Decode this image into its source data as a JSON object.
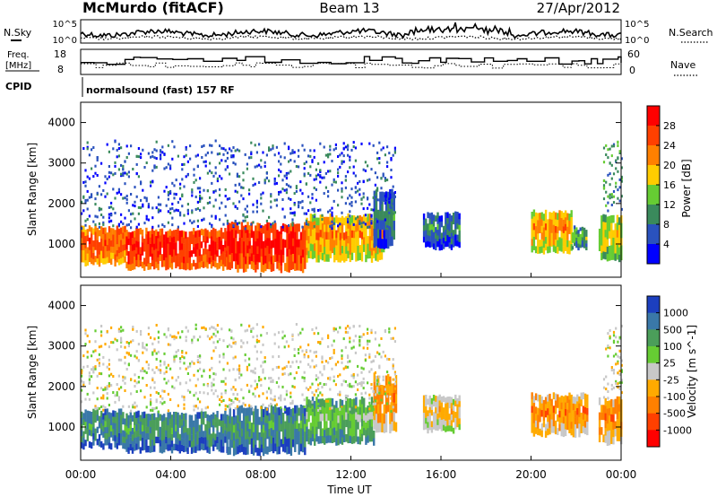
{
  "header": {
    "station": "McMurdo (fitACF)",
    "beam": "Beam 13",
    "date": "27/Apr/2012"
  },
  "noise_panel": {
    "left_label": "N.Sky",
    "right_label": "N.Search",
    "yticks_left": [
      "10^5",
      "10^0"
    ],
    "yticks_right": [
      "10^5",
      "10^0"
    ]
  },
  "freq_panel": {
    "left_label_1": "Freq.",
    "left_label_2": "[MHz]",
    "right_label": "Nave",
    "yticks_left": [
      "18",
      "8"
    ],
    "yticks_right": [
      "60",
      "0"
    ]
  },
  "cpid": {
    "label": "CPID",
    "text": "normalsound (fast) 157 RF"
  },
  "x_axis": {
    "label": "Time UT",
    "ticks": [
      "00:00",
      "04:00",
      "08:00",
      "12:00",
      "16:00",
      "20:00",
      "00:00"
    ]
  },
  "chart_data": [
    {
      "type": "heatmap",
      "quantity": "Power",
      "ylabel": "Slant Range [km]",
      "colorbar_label": "Power [dB]",
      "x_range_hours": [
        0,
        24
      ],
      "ylim": [
        180,
        4500
      ],
      "yticks": [
        1000,
        2000,
        3000,
        4000
      ],
      "colorbar_ticks": [
        "4",
        "8",
        "12",
        "16",
        "20",
        "24",
        "28"
      ],
      "colorbar_colors": [
        "#0000ff",
        "#2a52be",
        "#3a8a5c",
        "#66cc33",
        "#ffcc00",
        "#ff8000",
        "#ff4000",
        "#ff0000"
      ],
      "regions": [
        {
          "t0": 0.0,
          "t1": 2.0,
          "r0": 500,
          "r1": 1400,
          "level": 6
        },
        {
          "t0": 2.0,
          "t1": 6.5,
          "r0": 400,
          "r1": 1350,
          "level": 7
        },
        {
          "t0": 6.5,
          "t1": 10.0,
          "r0": 350,
          "r1": 1500,
          "level": 7
        },
        {
          "t0": 10.0,
          "t1": 13.5,
          "r0": 600,
          "r1": 1700,
          "level": 5
        },
        {
          "t0": 13.0,
          "t1": 13.9,
          "r0": 900,
          "r1": 2300,
          "level": 2
        },
        {
          "t0": 15.2,
          "t1": 16.8,
          "r0": 900,
          "r1": 1750,
          "level": 2
        },
        {
          "t0": 20.0,
          "t1": 21.8,
          "r0": 800,
          "r1": 1800,
          "level": 5
        },
        {
          "t0": 21.8,
          "t1": 22.5,
          "r0": 900,
          "r1": 1400,
          "level": 3
        },
        {
          "t0": 23.0,
          "t1": 24.0,
          "r0": 600,
          "r1": 1700,
          "level": 4
        },
        {
          "t0": 0.0,
          "t1": 14.0,
          "r0": 1400,
          "r1": 3500,
          "level": 1,
          "sparse": true
        },
        {
          "t0": 23.2,
          "t1": 24.0,
          "r0": 1700,
          "r1": 3500,
          "level": 2,
          "sparse": true
        }
      ]
    },
    {
      "type": "heatmap",
      "quantity": "Velocity",
      "ylabel": "Slant Range [km]",
      "colorbar_label": "Velocity [m s^-1]",
      "x_range_hours": [
        0,
        24
      ],
      "ylim": [
        180,
        4500
      ],
      "yticks": [
        1000,
        2000,
        3000,
        4000
      ],
      "colorbar_ticks": [
        "1000",
        "500",
        "100",
        "25",
        "-25",
        "-100",
        "-500",
        "-1000"
      ],
      "colorbar_colors": [
        "#1c3fbf",
        "#3a78a8",
        "#4b9e5a",
        "#66cc33",
        "#c8c8c8",
        "#ffaa00",
        "#ff8000",
        "#ff4000",
        "#ff0000"
      ],
      "regions": [
        {
          "t0": 0.0,
          "t1": 2.0,
          "r0": 500,
          "r1": 1400,
          "level": 2
        },
        {
          "t0": 2.0,
          "t1": 6.5,
          "r0": 400,
          "r1": 1350,
          "level": 2
        },
        {
          "t0": 6.5,
          "t1": 10.0,
          "r0": 350,
          "r1": 1500,
          "level": 2
        },
        {
          "t0": 10.0,
          "t1": 13.0,
          "r0": 600,
          "r1": 1700,
          "level": 3
        },
        {
          "t0": 13.0,
          "t1": 14.0,
          "r0": 900,
          "r1": 2300,
          "level": 6
        },
        {
          "t0": 15.2,
          "t1": 16.8,
          "r0": 900,
          "r1": 1750,
          "level": 5
        },
        {
          "t0": 20.0,
          "t1": 22.5,
          "r0": 800,
          "r1": 1800,
          "level": 6
        },
        {
          "t0": 23.0,
          "t1": 24.0,
          "r0": 600,
          "r1": 1700,
          "level": 6
        },
        {
          "t0": 0.0,
          "t1": 14.0,
          "r0": 1400,
          "r1": 3500,
          "level": 4,
          "sparse": true
        },
        {
          "t0": 23.2,
          "t1": 24.0,
          "r0": 1700,
          "r1": 3500,
          "level": 4,
          "sparse": true
        }
      ]
    }
  ]
}
